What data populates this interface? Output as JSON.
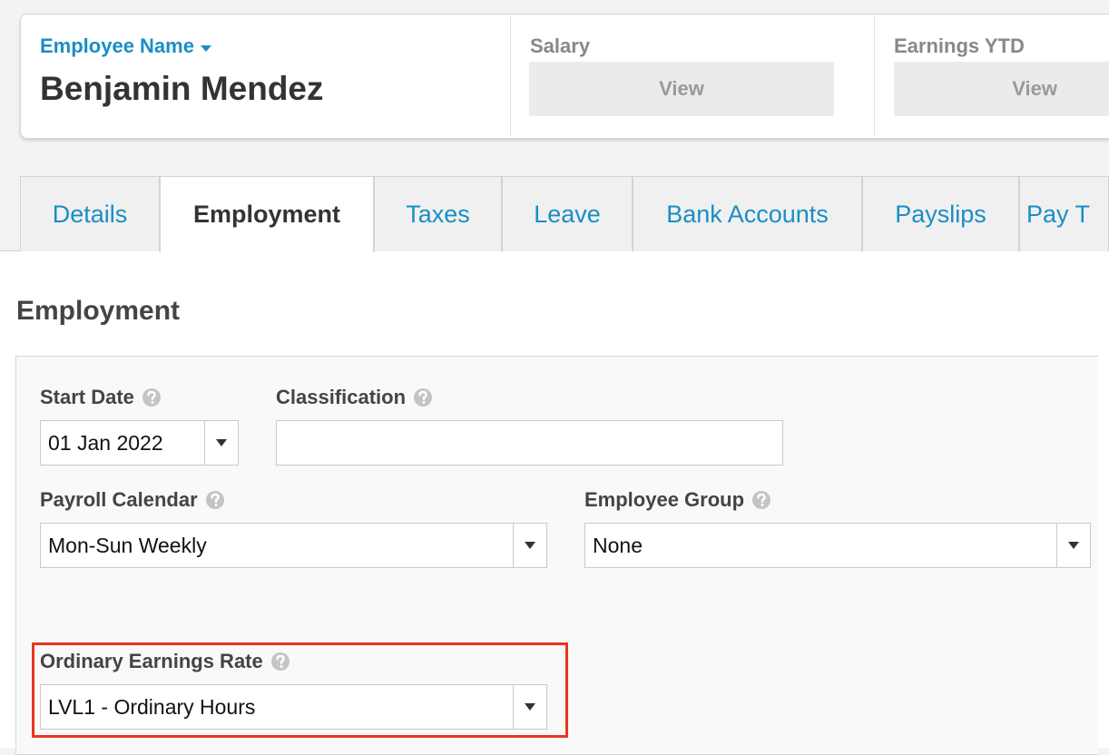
{
  "header": {
    "employee_label": "Employee Name",
    "employee_name": "Benjamin Mendez",
    "salary": {
      "label": "Salary",
      "button": "View"
    },
    "earnings_ytd": {
      "label": "Earnings YTD",
      "button": "View"
    }
  },
  "tabs": [
    "Details",
    "Employment",
    "Taxes",
    "Leave",
    "Bank Accounts",
    "Payslips",
    "Pay T"
  ],
  "section": {
    "title": "Employment",
    "fields": {
      "start_date": {
        "label": "Start Date",
        "value": "01 Jan 2022"
      },
      "classification": {
        "label": "Classification"
      },
      "payroll_calendar": {
        "label": "Payroll Calendar",
        "value": "Mon-Sun Weekly"
      },
      "employee_group": {
        "label": "Employee Group",
        "value": "None"
      },
      "ordinary_earnings_rate": {
        "label": "Ordinary Earnings Rate",
        "value": "LVL1 - Ordinary Hours"
      }
    }
  }
}
